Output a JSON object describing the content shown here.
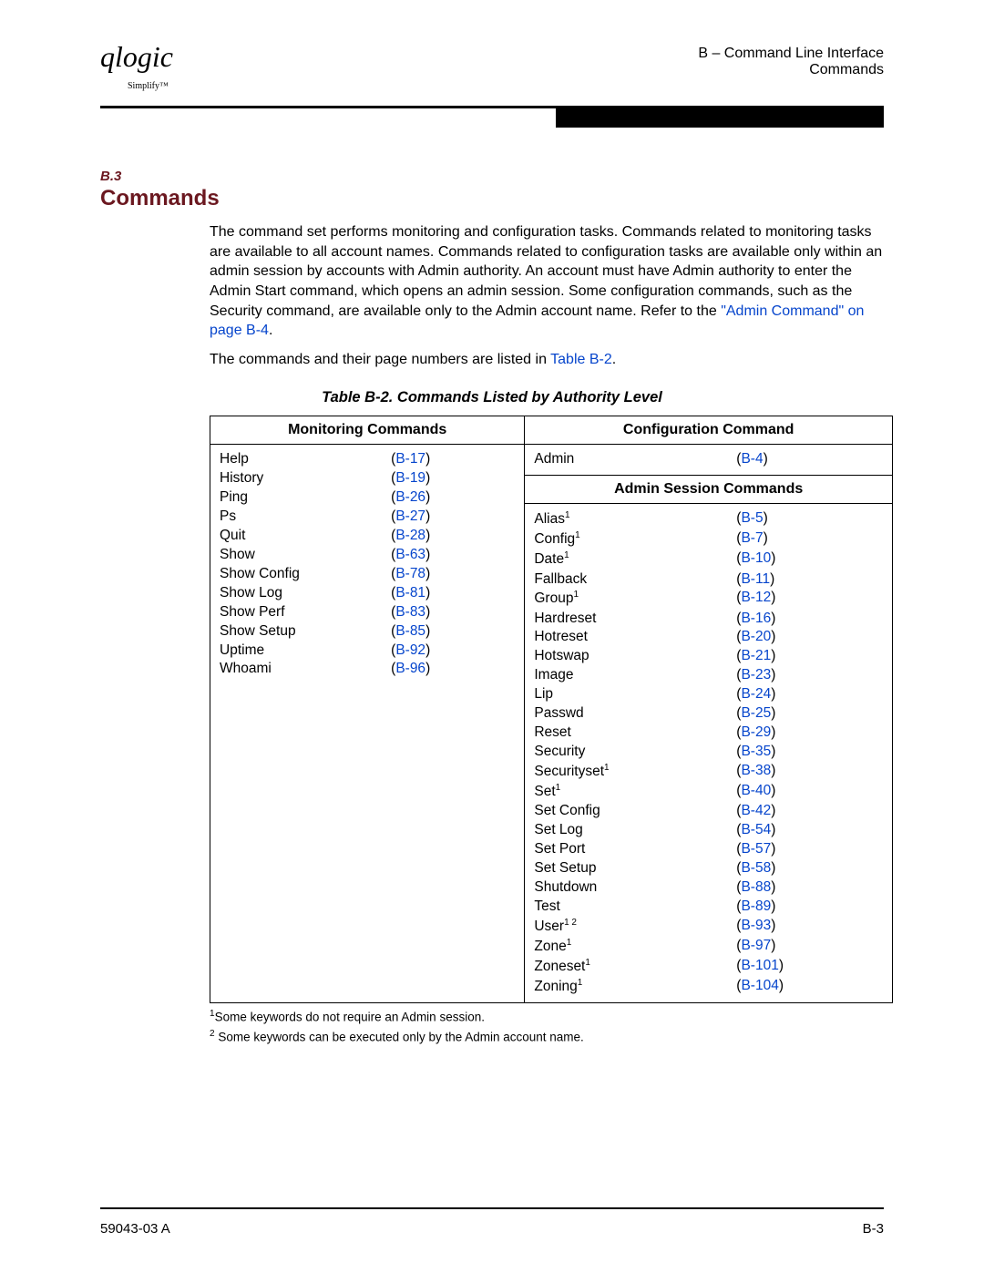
{
  "header": {
    "logo_main": "qlogic",
    "logo_sub": "Simplify™",
    "line1": "B – Command Line Interface",
    "line2": "Commands"
  },
  "section": {
    "number": "B.3",
    "title": "Commands",
    "para1_a": "The command set performs monitoring and configuration tasks. Commands related to monitoring tasks are available to all account names. Commands related to configuration tasks are available only within an admin session by accounts with Admin authority. An account must have Admin authority to enter the Admin Start command, which opens an admin session. Some configuration commands, such as the Security command, are available only to the Admin account name. Refer to the ",
    "para1_link": "\"Admin Command\" on page B-4",
    "para1_b": ".",
    "para2_a": "The commands and their page numbers are listed in ",
    "para2_link": "Table B-2",
    "para2_b": "."
  },
  "table": {
    "caption": "Table B-2. Commands Listed by Authority Level",
    "col1_header": "Monitoring Commands",
    "col2_header": "Configuration Command",
    "admin_session_header": "Admin Session Commands",
    "monitoring": [
      {
        "name": "Help",
        "page": "B-17"
      },
      {
        "name": "History",
        "page": "B-19"
      },
      {
        "name": "Ping",
        "page": "B-26"
      },
      {
        "name": "Ps",
        "page": "B-27"
      },
      {
        "name": "Quit",
        "page": "B-28"
      },
      {
        "name": "Show",
        "page": "B-63"
      },
      {
        "name": "Show Config",
        "page": "B-78"
      },
      {
        "name": "Show Log",
        "page": "B-81"
      },
      {
        "name": "Show Perf",
        "page": "B-83"
      },
      {
        "name": "Show Setup",
        "page": "B-85"
      },
      {
        "name": "Uptime",
        "page": "B-92"
      },
      {
        "name": "Whoami",
        "page": "B-96"
      }
    ],
    "config_top": [
      {
        "name": "Admin",
        "page": "B-4"
      }
    ],
    "admin_session": [
      {
        "name": "Alias",
        "sup": "1",
        "page": "B-5"
      },
      {
        "name": "Config",
        "sup": "1",
        "page": "B-7"
      },
      {
        "name": "Date",
        "sup": "1",
        "page": "B-10"
      },
      {
        "name": "Fallback",
        "sup": "",
        "page": "B-11"
      },
      {
        "name": "Group",
        "sup": "1",
        "page": "B-12"
      },
      {
        "name": "Hardreset",
        "sup": "",
        "page": "B-16"
      },
      {
        "name": "Hotreset",
        "sup": "",
        "page": "B-20"
      },
      {
        "name": "Hotswap",
        "sup": "",
        "page": "B-21"
      },
      {
        "name": "Image",
        "sup": "",
        "page": "B-23"
      },
      {
        "name": "Lip",
        "sup": "",
        "page": "B-24"
      },
      {
        "name": "Passwd",
        "sup": "",
        "page": "B-25"
      },
      {
        "name": "Reset",
        "sup": "",
        "page": "B-29"
      },
      {
        "name": "Security",
        "sup": "",
        "page": "B-35"
      },
      {
        "name": "Securityset",
        "sup": "1",
        "page": "B-38"
      },
      {
        "name": "Set",
        "sup": "1",
        "page": "B-40"
      },
      {
        "name": "Set Config",
        "sup": "",
        "page": "B-42"
      },
      {
        "name": "Set Log",
        "sup": "",
        "page": "B-54"
      },
      {
        "name": "Set Port",
        "sup": "",
        "page": "B-57"
      },
      {
        "name": "Set Setup",
        "sup": "",
        "page": "B-58"
      },
      {
        "name": "Shutdown",
        "sup": "",
        "page": "B-88"
      },
      {
        "name": "Test",
        "sup": "",
        "page": "B-89"
      },
      {
        "name": "User",
        "sup": "1  2",
        "page": "B-93"
      },
      {
        "name": "Zone",
        "sup": "1",
        "page": "B-97"
      },
      {
        "name": "Zoneset",
        "sup": "1",
        "page": "B-101"
      },
      {
        "name": "Zoning",
        "sup": "1",
        "page": "B-104"
      }
    ]
  },
  "footnotes": {
    "f1": "Some keywords do not require an Admin session.",
    "f2": " Some keywords can be executed only by the Admin account name."
  },
  "footer": {
    "left": "59043-03 A",
    "right": "B-3"
  },
  "colors": {
    "link": "#0645cc",
    "heading": "#6b1820"
  }
}
